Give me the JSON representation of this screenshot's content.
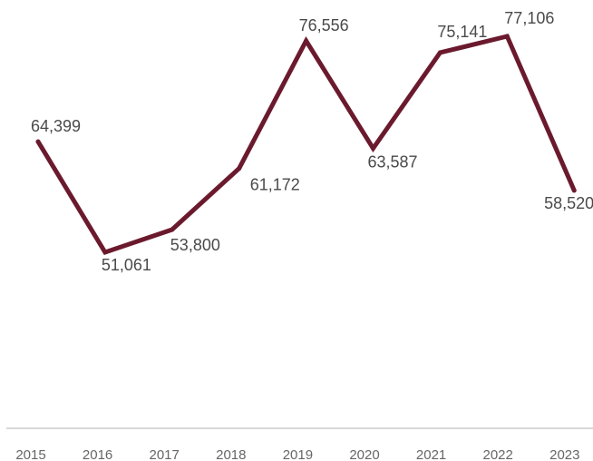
{
  "chart_data": {
    "type": "line",
    "title": "",
    "xlabel": "",
    "ylabel": "",
    "categories": [
      "2015",
      "2016",
      "2017",
      "2018",
      "2019",
      "2020",
      "2021",
      "2022",
      "2023"
    ],
    "series": [
      {
        "values": [
          64399,
          51061,
          53800,
          61172,
          76556,
          63587,
          75141,
          77106,
          58520
        ],
        "labels": [
          "64,399",
          "51,061",
          "53,800",
          "61,172",
          "76,556",
          "63,587",
          "75,141",
          "77,106",
          "58,520"
        ]
      }
    ],
    "ylim": [
      21500,
      80500
    ],
    "grid": false,
    "legend": "none",
    "colors": {
      "line": "#6b1a2e",
      "axis": "#cccccc",
      "text": "#4a4a4a",
      "tick_text": "#666666"
    }
  }
}
